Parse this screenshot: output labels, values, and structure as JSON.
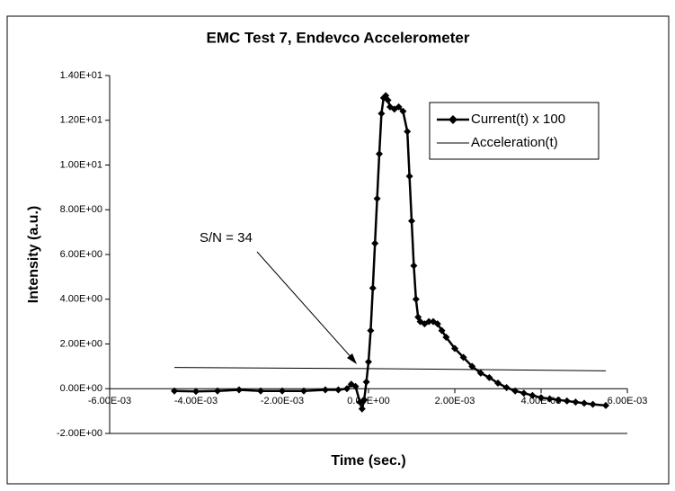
{
  "chart_data": {
    "type": "line",
    "title": "EMC Test 7, Endevco Accelerometer",
    "x_label": "Time (sec.)",
    "y_label": "Intensity (a.u.)",
    "annotation": "S/N = 34",
    "legend": "upper right",
    "xlim": [
      -0.006,
      0.006
    ],
    "ylim": [
      -2,
      14
    ],
    "xticks": [
      {
        "value": -0.006,
        "label": "-6.00E-03"
      },
      {
        "value": -0.004,
        "label": "-4.00E-03"
      },
      {
        "value": -0.002,
        "label": "-2.00E-03"
      },
      {
        "value": 0,
        "label": "0.00E+00"
      },
      {
        "value": 0.002,
        "label": "2.00E-03"
      },
      {
        "value": 0.004,
        "label": "4.00E-03"
      },
      {
        "value": 0.006,
        "label": "6.00E-03"
      }
    ],
    "yticks": [
      {
        "value": -2,
        "label": "-2.00E+00"
      },
      {
        "value": 0,
        "label": "0.00E+00"
      },
      {
        "value": 2,
        "label": "2.00E+00"
      },
      {
        "value": 4,
        "label": "4.00E+00"
      },
      {
        "value": 6,
        "label": "6.00E+00"
      },
      {
        "value": 8,
        "label": "8.00E+00"
      },
      {
        "value": 10,
        "label": "1.00E+01"
      },
      {
        "value": 12,
        "label": "1.20E+01"
      },
      {
        "value": 14,
        "label": "1.40E+01"
      }
    ],
    "series": [
      {
        "name": "Current(t) x 100",
        "color": "#000000",
        "marker": "diamond",
        "x": [
          -0.0045,
          -0.004,
          -0.0035,
          -0.003,
          -0.0025,
          -0.002,
          -0.0015,
          -0.001,
          -0.0007,
          -0.0005,
          -0.0004,
          -0.0003,
          -0.0002,
          -0.00015,
          -0.0001,
          -5e-05,
          0,
          5e-05,
          0.0001,
          0.00015,
          0.0002,
          0.00025,
          0.0003,
          0.00035,
          0.0004,
          0.00045,
          0.0005,
          0.0006,
          0.0007,
          0.0008,
          0.0009,
          0.00095,
          0.001,
          0.00105,
          0.0011,
          0.00115,
          0.0012,
          0.0013,
          0.0014,
          0.0015,
          0.0016,
          0.0017,
          0.0018,
          0.002,
          0.0022,
          0.0024,
          0.0026,
          0.0028,
          0.003,
          0.0032,
          0.0034,
          0.0036,
          0.0038,
          0.004,
          0.0042,
          0.0044,
          0.0046,
          0.0048,
          0.005,
          0.0052,
          0.0055
        ],
        "values": [
          -0.1,
          -0.12,
          -0.1,
          -0.05,
          -0.1,
          -0.1,
          -0.1,
          -0.05,
          -0.05,
          0,
          0.2,
          0.1,
          -0.6,
          -0.9,
          -0.5,
          0.3,
          1.2,
          2.6,
          4.5,
          6.5,
          8.5,
          10.5,
          12.3,
          13,
          13.1,
          12.9,
          12.6,
          12.5,
          12.6,
          12.4,
          11.5,
          9.5,
          7.5,
          5.5,
          4,
          3.2,
          3,
          2.9,
          3,
          3,
          2.9,
          2.6,
          2.3,
          1.8,
          1.4,
          1,
          0.7,
          0.5,
          0.25,
          0.05,
          -0.1,
          -0.2,
          -0.3,
          -0.4,
          -0.45,
          -0.5,
          -0.55,
          -0.6,
          -0.65,
          -0.7,
          -0.75
        ]
      },
      {
        "name": "Acceleration(t)",
        "color": "#000000",
        "x": [
          -0.0045,
          0,
          0.0055
        ],
        "values": [
          0.95,
          0.9,
          0.8
        ]
      }
    ]
  }
}
